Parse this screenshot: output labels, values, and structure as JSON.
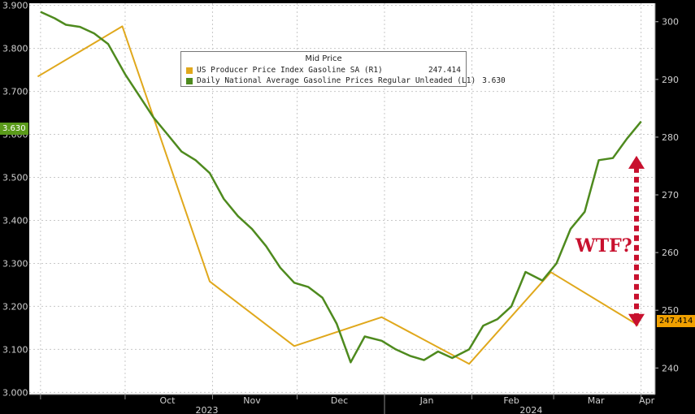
{
  "chart_data": {
    "type": "line",
    "title": "Mid Price",
    "series": [
      {
        "name": "US Producer Price Index Gasoline SA (R1)",
        "axis": "right",
        "color": "#e0a81c",
        "last_value_label": "247.414",
        "points": [
          [
            "2023-08-31",
            290.5
          ],
          [
            "2023-09-30",
            299.2
          ],
          [
            "2023-10-31",
            255.0
          ],
          [
            "2023-11-30",
            243.8
          ],
          [
            "2023-12-31",
            248.8
          ],
          [
            "2024-01-31",
            240.7
          ],
          [
            "2024-02-29",
            256.6
          ],
          [
            "2024-03-31",
            247.4
          ]
        ]
      },
      {
        "name": "Daily National Average Gasoline Prices Regular Unleaded (L1)",
        "axis": "left",
        "color": "#4e8a1e",
        "last_value_label": "3.630",
        "points": [
          [
            "2023-09-01",
            3.885
          ],
          [
            "2023-09-06",
            3.87
          ],
          [
            "2023-09-10",
            3.855
          ],
          [
            "2023-09-15",
            3.85
          ],
          [
            "2023-09-20",
            3.835
          ],
          [
            "2023-09-25",
            3.81
          ],
          [
            "2023-10-01",
            3.74
          ],
          [
            "2023-10-06",
            3.69
          ],
          [
            "2023-10-11",
            3.64
          ],
          [
            "2023-10-16",
            3.6
          ],
          [
            "2023-10-21",
            3.56
          ],
          [
            "2023-10-26",
            3.54
          ],
          [
            "2023-10-31",
            3.51
          ],
          [
            "2023-11-05",
            3.45
          ],
          [
            "2023-11-10",
            3.41
          ],
          [
            "2023-11-15",
            3.38
          ],
          [
            "2023-11-20",
            3.34
          ],
          [
            "2023-11-25",
            3.29
          ],
          [
            "2023-11-30",
            3.255
          ],
          [
            "2023-12-05",
            3.245
          ],
          [
            "2023-12-10",
            3.22
          ],
          [
            "2023-12-15",
            3.16
          ],
          [
            "2023-12-20",
            3.07
          ],
          [
            "2023-12-25",
            3.13
          ],
          [
            "2023-12-31",
            3.12
          ],
          [
            "2024-01-05",
            3.1
          ],
          [
            "2024-01-10",
            3.085
          ],
          [
            "2024-01-15",
            3.075
          ],
          [
            "2024-01-20",
            3.095
          ],
          [
            "2024-01-25",
            3.08
          ],
          [
            "2024-01-31",
            3.1
          ],
          [
            "2024-02-05",
            3.155
          ],
          [
            "2024-02-10",
            3.17
          ],
          [
            "2024-02-15",
            3.2
          ],
          [
            "2024-02-20",
            3.28
          ],
          [
            "2024-02-26",
            3.26
          ],
          [
            "2024-03-02",
            3.3
          ],
          [
            "2024-03-07",
            3.38
          ],
          [
            "2024-03-12",
            3.42
          ],
          [
            "2024-03-17",
            3.54
          ],
          [
            "2024-03-22",
            3.545
          ],
          [
            "2024-03-27",
            3.59
          ],
          [
            "2024-04-01",
            3.63
          ]
        ]
      }
    ],
    "left_axis": {
      "ylim": [
        2.995,
        3.905
      ],
      "ticks": [
        "3.000",
        "3.100",
        "3.200",
        "3.300",
        "3.400",
        "3.500",
        "3.600",
        "3.700",
        "3.800",
        "3.900"
      ],
      "tick_values": [
        3.0,
        3.1,
        3.2,
        3.3,
        3.4,
        3.5,
        3.6,
        3.7,
        3.8,
        3.9
      ]
    },
    "right_axis": {
      "ylim": [
        235.4,
        303.2
      ],
      "ticks": [
        "240",
        "250",
        "260",
        "270",
        "280",
        "290",
        "300"
      ],
      "tick_values": [
        240,
        250,
        260,
        270,
        280,
        290,
        300
      ]
    },
    "x_axis": {
      "range": [
        "2023-08-28",
        "2024-04-06"
      ],
      "months": [
        {
          "label": "Oct",
          "date": "2023-10-01"
        },
        {
          "label": "Nov",
          "date": "2023-11-01"
        },
        {
          "label": "Dec",
          "date": "2023-12-01"
        },
        {
          "label": "Jan",
          "date": "2024-01-01"
        },
        {
          "label": "Feb",
          "date": "2024-02-01"
        },
        {
          "label": "Mar",
          "date": "2024-03-01"
        },
        {
          "label": "Apr",
          "date": "2024-04-01"
        }
      ],
      "years": [
        {
          "label": "2023",
          "date": "2023-10-30"
        },
        {
          "label": "2024",
          "date": "2024-02-22"
        }
      ]
    },
    "grid": true,
    "legend_position": "top-center",
    "annotation": {
      "text": "WTF?",
      "color": "#c8102e",
      "from_value": 247.4,
      "to_value": 276.5
    }
  }
}
